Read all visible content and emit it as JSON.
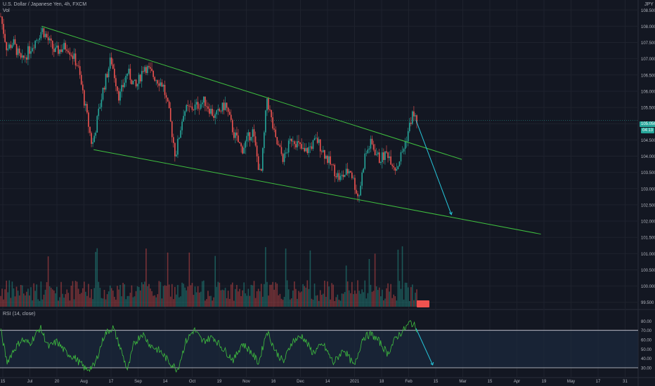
{
  "header": {
    "symbol_title": "U.S. Dollar / Japanese Yen, 4h, FXCM",
    "volume_label": "Vol",
    "currency": "JPY",
    "rsi_title": "RSI (14, close)"
  },
  "price_tags": {
    "last_price": "105.056",
    "countdown": "04:13"
  },
  "colors": {
    "background": "#131722",
    "grid": "#1e222d",
    "up": "#26a69a",
    "down": "#ef5350",
    "trendline": "#3fbf3f",
    "projection": "#26c6da",
    "rsi_line": "#3fbf3f",
    "rsi_band": "#1b2a3d"
  },
  "chart_data": [
    {
      "type": "candlestick",
      "price_axis": {
        "ticks": [
          "108.500",
          "108.000",
          "107.500",
          "107.000",
          "106.500",
          "106.000",
          "105.500",
          "105.000",
          "104.500",
          "104.000",
          "103.500",
          "103.000",
          "102.500",
          "102.000",
          "101.500",
          "101.000",
          "100.500",
          "100.000",
          "99.500"
        ],
        "ylim": [
          99.3,
          108.7
        ]
      },
      "time_axis": {
        "ticks": [
          "15",
          "Jul",
          "20",
          "Aug",
          "17",
          "Sep",
          "14",
          "Oct",
          "19",
          "Nov",
          "16",
          "Dec",
          "14",
          "2021",
          "18",
          "Feb",
          "15",
          "Mar",
          "15",
          "Apr",
          "19",
          "May",
          "17",
          "31"
        ]
      },
      "price_path": [
        {
          "t": 0.0,
          "p": 108.3
        },
        {
          "t": 0.3,
          "p": 107.3
        },
        {
          "t": 0.6,
          "p": 107.5
        },
        {
          "t": 1.0,
          "p": 106.9
        },
        {
          "t": 1.5,
          "p": 107.4
        },
        {
          "t": 2.0,
          "p": 107.9
        },
        {
          "t": 2.6,
          "p": 107.2
        },
        {
          "t": 3.2,
          "p": 107.4
        },
        {
          "t": 3.7,
          "p": 106.8
        },
        {
          "t": 4.1,
          "p": 105.4
        },
        {
          "t": 4.4,
          "p": 104.3
        },
        {
          "t": 4.9,
          "p": 106.0
        },
        {
          "t": 5.3,
          "p": 107.0
        },
        {
          "t": 5.7,
          "p": 105.8
        },
        {
          "t": 6.1,
          "p": 106.6
        },
        {
          "t": 6.5,
          "p": 106.1
        },
        {
          "t": 6.9,
          "p": 106.8
        },
        {
          "t": 7.3,
          "p": 106.5
        },
        {
          "t": 7.8,
          "p": 106.2
        },
        {
          "t": 8.1,
          "p": 105.3
        },
        {
          "t": 8.4,
          "p": 104.0
        },
        {
          "t": 8.8,
          "p": 105.4
        },
        {
          "t": 9.3,
          "p": 105.5
        },
        {
          "t": 9.8,
          "p": 105.7
        },
        {
          "t": 10.3,
          "p": 105.2
        },
        {
          "t": 10.8,
          "p": 105.6
        },
        {
          "t": 11.2,
          "p": 104.7
        },
        {
          "t": 11.6,
          "p": 104.2
        },
        {
          "t": 12.1,
          "p": 104.8
        },
        {
          "t": 12.5,
          "p": 103.3
        },
        {
          "t": 12.8,
          "p": 105.8
        },
        {
          "t": 13.2,
          "p": 104.5
        },
        {
          "t": 13.6,
          "p": 103.9
        },
        {
          "t": 14.0,
          "p": 104.6
        },
        {
          "t": 14.6,
          "p": 104.1
        },
        {
          "t": 15.2,
          "p": 104.5
        },
        {
          "t": 15.8,
          "p": 103.8
        },
        {
          "t": 16.3,
          "p": 103.3
        },
        {
          "t": 16.8,
          "p": 103.6
        },
        {
          "t": 17.2,
          "p": 102.7
        },
        {
          "t": 17.5,
          "p": 104.0
        },
        {
          "t": 17.8,
          "p": 104.4
        },
        {
          "t": 18.2,
          "p": 103.9
        },
        {
          "t": 18.6,
          "p": 104.1
        },
        {
          "t": 19.0,
          "p": 103.6
        },
        {
          "t": 19.4,
          "p": 104.3
        },
        {
          "t": 19.8,
          "p": 105.3
        },
        {
          "t": 20.0,
          "p": 105.1
        }
      ],
      "channel_upper": [
        {
          "t": 2.0,
          "p": 108.0
        },
        {
          "t": 22.2,
          "p": 103.9
        }
      ],
      "channel_lower": [
        {
          "t": 4.5,
          "p": 104.2
        },
        {
          "t": 26.0,
          "p": 101.6
        }
      ],
      "projection": [
        {
          "t": 20.0,
          "p": 105.1
        },
        {
          "t": 21.7,
          "p": 102.2
        }
      ]
    },
    {
      "type": "line",
      "title": "RSI (14, close)",
      "ticks": [
        "80.00",
        "70.00",
        "60.00",
        "50.00",
        "40.00",
        "30.00"
      ],
      "ylim": [
        24,
        84
      ],
      "bands": [
        30,
        70
      ],
      "path": [
        {
          "t": 0.0,
          "v": 70
        },
        {
          "t": 0.3,
          "v": 36
        },
        {
          "t": 0.6,
          "v": 48
        },
        {
          "t": 1.0,
          "v": 60
        },
        {
          "t": 1.4,
          "v": 56
        },
        {
          "t": 1.9,
          "v": 73
        },
        {
          "t": 2.3,
          "v": 52
        },
        {
          "t": 2.7,
          "v": 58
        },
        {
          "t": 3.1,
          "v": 47
        },
        {
          "t": 3.6,
          "v": 40
        },
        {
          "t": 4.1,
          "v": 28
        },
        {
          "t": 4.5,
          "v": 32
        },
        {
          "t": 5.0,
          "v": 66
        },
        {
          "t": 5.4,
          "v": 73
        },
        {
          "t": 5.8,
          "v": 48
        },
        {
          "t": 6.1,
          "v": 27
        },
        {
          "t": 6.4,
          "v": 55
        },
        {
          "t": 6.8,
          "v": 67
        },
        {
          "t": 7.2,
          "v": 54
        },
        {
          "t": 7.7,
          "v": 47
        },
        {
          "t": 8.1,
          "v": 36
        },
        {
          "t": 8.5,
          "v": 28
        },
        {
          "t": 8.9,
          "v": 58
        },
        {
          "t": 9.3,
          "v": 71
        },
        {
          "t": 9.7,
          "v": 58
        },
        {
          "t": 10.2,
          "v": 63
        },
        {
          "t": 10.7,
          "v": 50
        },
        {
          "t": 11.2,
          "v": 38
        },
        {
          "t": 11.6,
          "v": 56
        },
        {
          "t": 12.0,
          "v": 48
        },
        {
          "t": 12.4,
          "v": 35
        },
        {
          "t": 12.8,
          "v": 70
        },
        {
          "t": 13.2,
          "v": 48
        },
        {
          "t": 13.6,
          "v": 36
        },
        {
          "t": 14.0,
          "v": 58
        },
        {
          "t": 14.5,
          "v": 64
        },
        {
          "t": 15.0,
          "v": 46
        },
        {
          "t": 15.5,
          "v": 55
        },
        {
          "t": 16.0,
          "v": 35
        },
        {
          "t": 16.5,
          "v": 50
        },
        {
          "t": 17.0,
          "v": 31
        },
        {
          "t": 17.4,
          "v": 62
        },
        {
          "t": 17.8,
          "v": 66
        },
        {
          "t": 18.2,
          "v": 58
        },
        {
          "t": 18.6,
          "v": 45
        },
        {
          "t": 19.0,
          "v": 62
        },
        {
          "t": 19.4,
          "v": 71
        },
        {
          "t": 19.7,
          "v": 79
        },
        {
          "t": 20.0,
          "v": 72
        }
      ],
      "projection": [
        {
          "t": 20.0,
          "v": 72
        },
        {
          "t": 20.8,
          "v": 33
        }
      ]
    }
  ]
}
